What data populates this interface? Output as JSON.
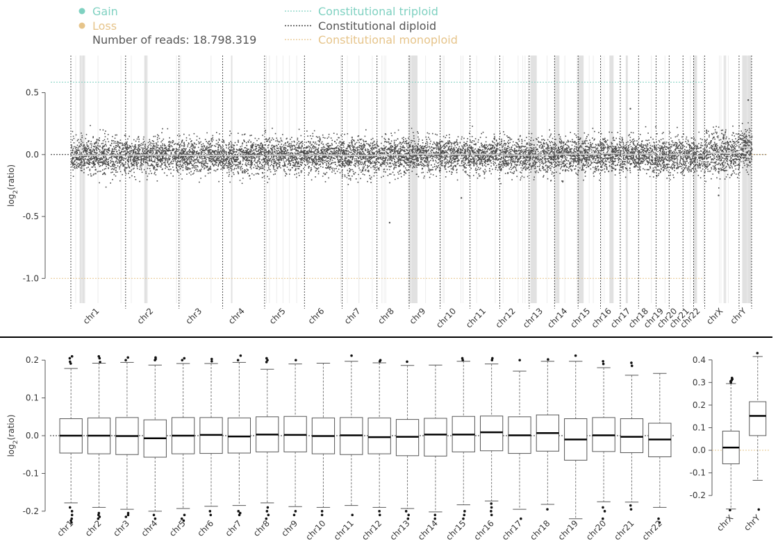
{
  "legend": {
    "gain": "Gain",
    "loss": "Loss",
    "reads": "Number of reads: 18.798.319",
    "triploid": "Constitutional triploid",
    "diploid": "Constitutional diploid",
    "monoploid": "Constitutional monoploid"
  },
  "colors": {
    "gain": "#7fd1c1",
    "loss": "#e6c48a",
    "points": "#4a4a4a",
    "segment": "#cfcfcf",
    "gap_band": "#e1e1e1",
    "text": "#555555"
  },
  "chart_data": [
    {
      "type": "scatter",
      "title": "",
      "ylabel": "log2(ratio)",
      "ylim": [
        -1.2,
        0.8
      ],
      "yticks": [
        0.5,
        0.0,
        -0.5,
        -1.0
      ],
      "ytick_labels": [
        "0.5",
        "0.0",
        "-0.5",
        "-1.0"
      ],
      "reference_lines": [
        {
          "name": "Constitutional triploid",
          "y": 0.585,
          "style": "dotted",
          "color": "#7fd1c1"
        },
        {
          "name": "Constitutional diploid",
          "y": 0.0,
          "style": "dotted",
          "color": "#222222"
        },
        {
          "name": "Constitutional monoploid",
          "y": -1.0,
          "style": "dotted",
          "color": "#e6c48a"
        }
      ],
      "chromosomes": [
        "chr1",
        "chr2",
        "chr3",
        "chr4",
        "chr5",
        "chr6",
        "chr7",
        "chr8",
        "chr9",
        "chr10",
        "chr11",
        "chr12",
        "chr13",
        "chr14",
        "chr15",
        "chr16",
        "chr17",
        "chr18",
        "chr19",
        "chr20",
        "chr21",
        "chr22",
        "chrX",
        "chrY"
      ],
      "relative_lengths": [
        249,
        243,
        198,
        191,
        181,
        171,
        159,
        146,
        141,
        136,
        135,
        134,
        115,
        107,
        102,
        90,
        83,
        80,
        59,
        63,
        48,
        51,
        156,
        57
      ],
      "segment_means": [
        -0.005,
        -0.004,
        -0.006,
        -0.008,
        -0.004,
        -0.004,
        -0.006,
        -0.002,
        0.003,
        0.001,
        0.001,
        -0.004,
        -0.004,
        0.003,
        0.003,
        0.008,
        0.002,
        0.006,
        -0.01,
        0.002,
        -0.003,
        -0.01,
        0.012,
        0.06
      ],
      "point_spread_sd": 0.07,
      "outliers": [
        {
          "chromosome": "chr8",
          "y": -0.55
        },
        {
          "chromosome": "chr10",
          "y": -0.35
        },
        {
          "chromosome": "chr17",
          "y": 0.37
        },
        {
          "chromosome": "chrX",
          "y": -0.33
        },
        {
          "chromosome": "chrY",
          "y": 0.44
        }
      ]
    },
    {
      "type": "box",
      "ylabel": "log2(ratio)",
      "ylim": [
        -0.215,
        0.215
      ],
      "yticks": [
        0.2,
        0.1,
        0.0,
        -0.1,
        -0.2
      ],
      "ytick_labels": [
        "0.2",
        "0.1",
        "0.0",
        "-0.1",
        "-0.2"
      ],
      "categories": [
        "chr1",
        "chr2",
        "chr3",
        "chr4",
        "chr5",
        "chr6",
        "chr7",
        "chr8",
        "chr9",
        "chr10",
        "chr11",
        "chr12",
        "chr13",
        "chr14",
        "chr15",
        "chr16",
        "chr17",
        "chr18",
        "chr19",
        "chr20",
        "chr21",
        "chr22"
      ],
      "boxes": [
        {
          "q1": -0.046,
          "median": 0.0,
          "q3": 0.045,
          "whisker_low": -0.178,
          "whisker_high": 0.178,
          "outliers": [
            0.21,
            0.205,
            0.196,
            0.191,
            -0.19,
            -0.2,
            -0.21,
            -0.22,
            -0.225,
            -0.23
          ]
        },
        {
          "q1": -0.048,
          "median": 0.0,
          "q3": 0.047,
          "whisker_low": -0.19,
          "whisker_high": 0.192,
          "outliers": [
            0.21,
            0.205,
            0.195,
            -0.205,
            -0.21,
            -0.215,
            -0.22
          ]
        },
        {
          "q1": -0.05,
          "median": -0.001,
          "q3": 0.048,
          "whisker_low": -0.195,
          "whisker_high": 0.194,
          "outliers": [
            0.207,
            0.2,
            -0.205,
            -0.21,
            -0.215
          ]
        },
        {
          "q1": -0.057,
          "median": -0.007,
          "q3": 0.042,
          "whisker_low": -0.2,
          "whisker_high": 0.187,
          "outliers": [
            0.207,
            0.203,
            0.2,
            -0.21,
            -0.22
          ]
        },
        {
          "q1": -0.048,
          "median": 0.0,
          "q3": 0.048,
          "whisker_low": -0.193,
          "whisker_high": 0.191,
          "outliers": [
            0.205,
            0.2,
            -0.21,
            -0.22,
            -0.225
          ]
        },
        {
          "q1": -0.047,
          "median": 0.002,
          "q3": 0.048,
          "whisker_low": -0.187,
          "whisker_high": 0.191,
          "outliers": [
            0.203,
            0.197,
            -0.2,
            -0.21
          ]
        },
        {
          "q1": -0.046,
          "median": -0.002,
          "q3": 0.047,
          "whisker_low": -0.185,
          "whisker_high": 0.194,
          "outliers": [
            0.212,
            0.2,
            -0.2,
            -0.205,
            -0.21
          ]
        },
        {
          "q1": -0.043,
          "median": 0.003,
          "q3": 0.05,
          "whisker_low": -0.178,
          "whisker_high": 0.176,
          "outliers": [
            0.205,
            0.2,
            0.195,
            -0.19,
            -0.2,
            -0.21,
            -0.22
          ]
        },
        {
          "q1": -0.043,
          "median": 0.002,
          "q3": 0.051,
          "whisker_low": -0.188,
          "whisker_high": 0.19,
          "outliers": [
            0.2,
            -0.2,
            -0.21
          ]
        },
        {
          "q1": -0.048,
          "median": -0.001,
          "q3": 0.047,
          "whisker_low": -0.19,
          "whisker_high": 0.192,
          "outliers": [
            -0.2,
            -0.21
          ]
        },
        {
          "q1": -0.05,
          "median": 0.001,
          "q3": 0.048,
          "whisker_low": -0.185,
          "whisker_high": 0.197,
          "outliers": [
            0.212,
            -0.21
          ]
        },
        {
          "q1": -0.048,
          "median": -0.004,
          "q3": 0.047,
          "whisker_low": -0.19,
          "whisker_high": 0.193,
          "outliers": [
            0.2,
            0.197,
            -0.2,
            -0.21
          ]
        },
        {
          "q1": -0.053,
          "median": -0.003,
          "q3": 0.043,
          "whisker_low": -0.193,
          "whisker_high": 0.186,
          "outliers": [
            0.196,
            -0.2,
            -0.21,
            -0.22
          ]
        },
        {
          "q1": -0.054,
          "median": 0.003,
          "q3": 0.046,
          "whisker_low": -0.202,
          "whisker_high": 0.187,
          "outliers": [
            -0.21,
            -0.22
          ]
        },
        {
          "q1": -0.043,
          "median": 0.003,
          "q3": 0.051,
          "whisker_low": -0.183,
          "whisker_high": 0.197,
          "outliers": [
            0.205,
            0.2,
            -0.2,
            -0.21,
            -0.22
          ]
        },
        {
          "q1": -0.04,
          "median": 0.009,
          "q3": 0.052,
          "whisker_low": -0.173,
          "whisker_high": 0.19,
          "outliers": [
            0.205,
            0.2,
            -0.18,
            -0.19,
            -0.2,
            -0.21
          ]
        },
        {
          "q1": -0.047,
          "median": 0.001,
          "q3": 0.05,
          "whisker_low": -0.195,
          "whisker_high": 0.171,
          "outliers": [
            0.2,
            -0.22
          ]
        },
        {
          "q1": -0.041,
          "median": 0.007,
          "q3": 0.055,
          "whisker_low": -0.182,
          "whisker_high": 0.197,
          "outliers": [
            0.202,
            -0.195
          ]
        },
        {
          "q1": -0.065,
          "median": -0.01,
          "q3": 0.045,
          "whisker_low": -0.22,
          "whisker_high": 0.197,
          "outliers": [
            0.212
          ]
        },
        {
          "q1": -0.042,
          "median": 0.001,
          "q3": 0.048,
          "whisker_low": -0.175,
          "whisker_high": 0.18,
          "outliers": [
            0.197,
            0.19,
            -0.19,
            -0.2,
            -0.22
          ]
        },
        {
          "q1": -0.045,
          "median": -0.003,
          "q3": 0.045,
          "whisker_low": -0.176,
          "whisker_high": 0.16,
          "outliers": [
            0.193,
            0.185,
            -0.185,
            -0.195
          ]
        },
        {
          "q1": -0.056,
          "median": -0.01,
          "q3": 0.033,
          "whisker_low": -0.19,
          "whisker_high": 0.165,
          "outliers": [
            -0.22,
            -0.23
          ]
        }
      ]
    },
    {
      "type": "box",
      "ylabel": "",
      "ylim": [
        -0.27,
        0.43
      ],
      "yticks": [
        0.4,
        0.3,
        0.2,
        0.1,
        0.0,
        -0.1,
        -0.2
      ],
      "ytick_labels": [
        "0.4",
        "0.3",
        "0.2",
        "0.1",
        "0.0",
        "-0.1",
        "-0.2"
      ],
      "categories": [
        "chrX",
        "chrY"
      ],
      "boxes": [
        {
          "q1": -0.06,
          "median": 0.012,
          "q3": 0.085,
          "whisker_low": -0.26,
          "whisker_high": 0.295,
          "outliers": [
            0.32,
            0.315,
            0.31,
            0.305,
            0.3,
            -0.265
          ]
        },
        {
          "q1": 0.065,
          "median": 0.152,
          "q3": 0.215,
          "whisker_low": -0.133,
          "whisker_high": 0.415,
          "outliers": [
            0.43,
            -0.262
          ]
        }
      ]
    }
  ]
}
